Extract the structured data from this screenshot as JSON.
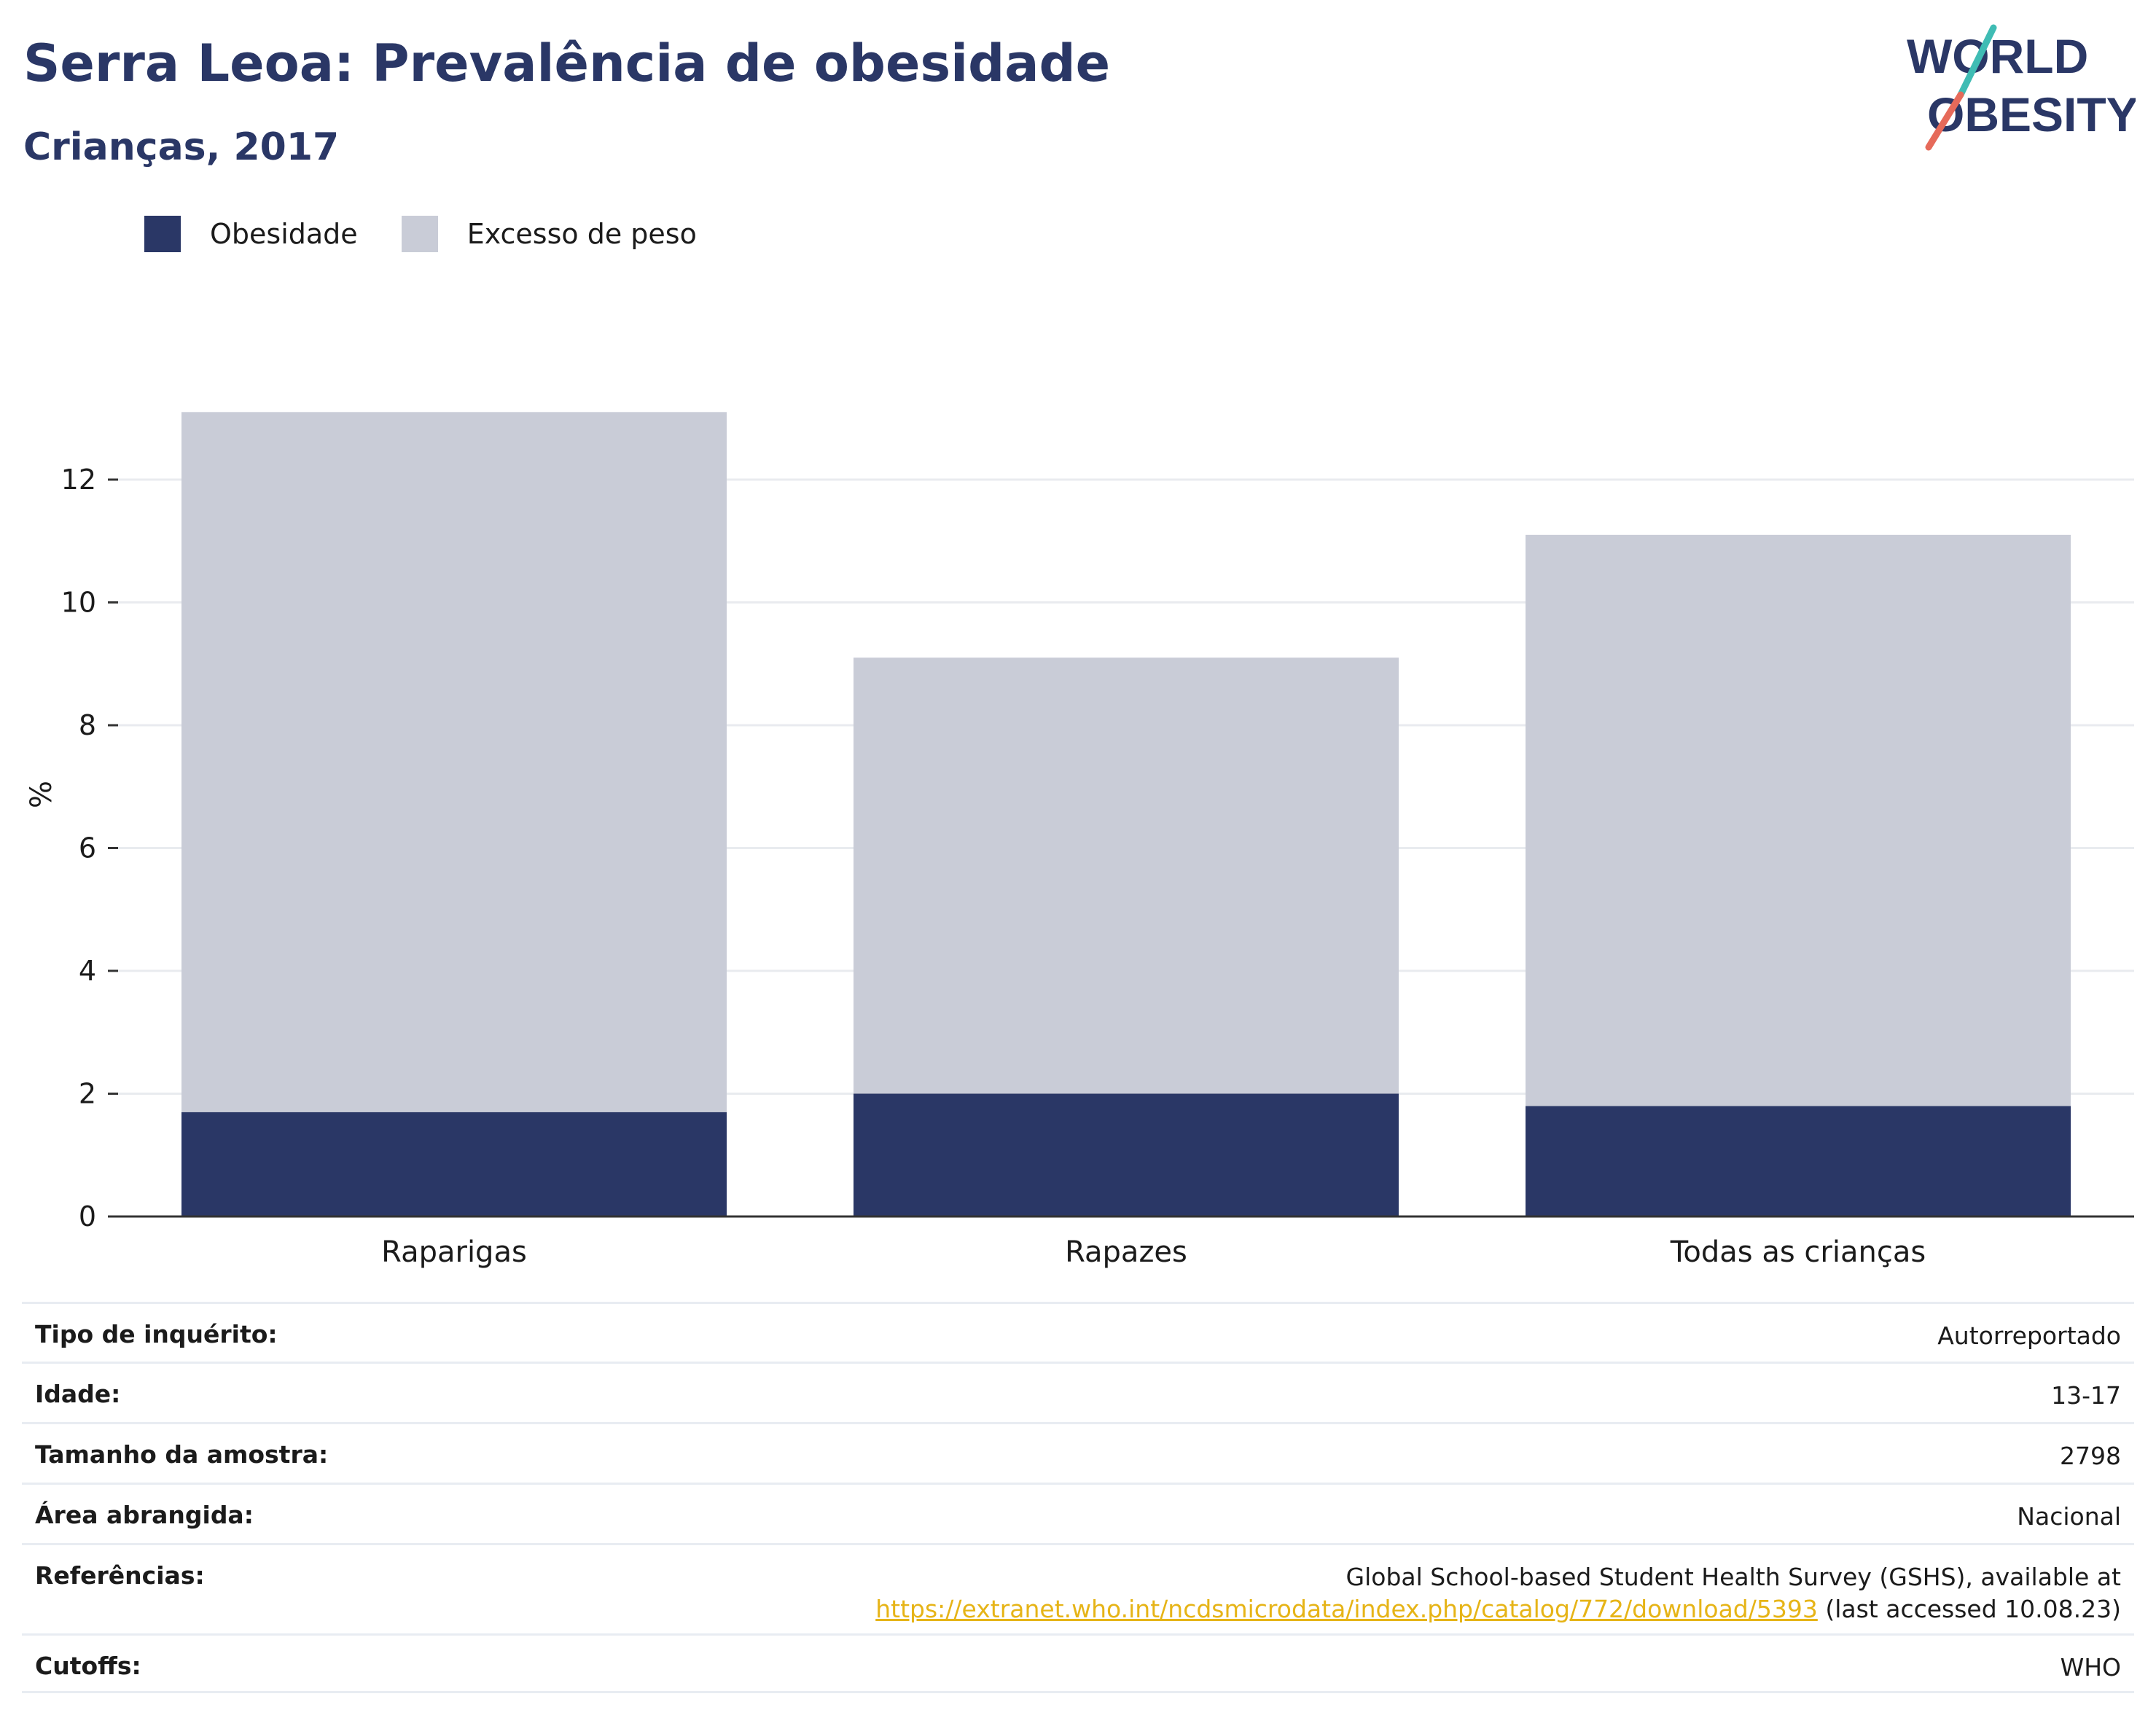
{
  "header": {
    "title": "Serra Leoa: Prevalência de obesidade",
    "subtitle": "Crianças, 2017"
  },
  "logo": {
    "line1": "WORLD",
    "line2": "OBESITY"
  },
  "legend": {
    "items": [
      {
        "label": "Obesidade",
        "color": "#2a3766"
      },
      {
        "label": "Excesso de peso",
        "color": "#c9ccd7"
      }
    ]
  },
  "chart_data": {
    "type": "bar",
    "stacked": true,
    "categories": [
      "Raparigas",
      "Rapazes",
      "Todas as crianças"
    ],
    "series": [
      {
        "name": "Obesidade",
        "color": "#2a3766",
        "values": [
          1.7,
          2.0,
          1.8
        ]
      },
      {
        "name": "Excesso de peso",
        "color": "#c9ccd7",
        "values": [
          11.4,
          7.1,
          9.3
        ]
      }
    ],
    "ylabel": "%",
    "xlabel": "",
    "ylim": [
      0,
      14
    ],
    "yticks": [
      0,
      2,
      4,
      6,
      8,
      10,
      12
    ],
    "grid": true,
    "legend_position": "top-left"
  },
  "info": {
    "rows": [
      {
        "label": "Tipo de inquérito:",
        "value": "Autorreportado"
      },
      {
        "label": "Idade:",
        "value": "13-17"
      },
      {
        "label": "Tamanho da amostra:",
        "value": "2798"
      },
      {
        "label": "Área abrangida:",
        "value": "Nacional"
      },
      {
        "label": "Referências:",
        "value_line1": "Global School-based Student Health Survey (GSHS), available at",
        "link": "https://extranet.who.int/ncdsmicrodata/index.php/catalog/772/download/5393",
        "value_suffix": " (last accessed 10.08.23)"
      },
      {
        "label": "Cutoffs:",
        "value": "WHO"
      }
    ]
  }
}
